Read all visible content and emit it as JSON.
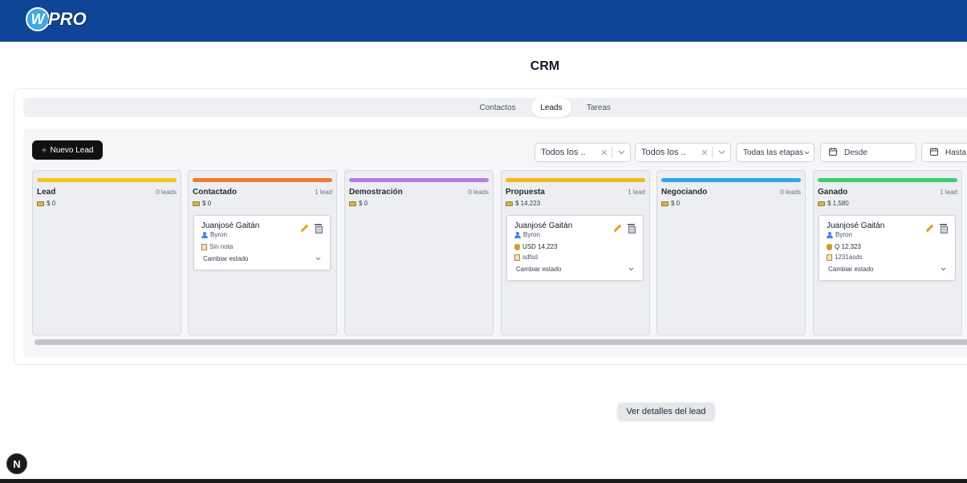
{
  "header": {
    "logo_letter": "W",
    "logo_text": "PRO"
  },
  "page": {
    "title": "CRM"
  },
  "tabs": [
    {
      "label": "Contactos",
      "active": false
    },
    {
      "label": "Leads",
      "active": true
    },
    {
      "label": "Tareas",
      "active": false
    }
  ],
  "toolbar": {
    "new_lead_label": "Nuevo Lead",
    "filter1_value": "Todos los ..",
    "filter2_value": "Todos los ..",
    "stage_filter_value": "Todas las etapas",
    "date_from_placeholder": "Desde",
    "date_to_placeholder": "Hasta"
  },
  "columns": [
    {
      "name": "Lead",
      "count": "0 leads",
      "total": "$ 0",
      "color": "#f5c518",
      "leads": []
    },
    {
      "name": "Contactado",
      "count": "1 lead",
      "total": "$ 0",
      "color": "#f07a2a",
      "leads": [
        {
          "name": "Juanjosé Gaitán",
          "owner": "Byron",
          "amount": "",
          "note": "Sin nota",
          "state": "Cambiar estado"
        }
      ]
    },
    {
      "name": "Demostración",
      "count": "0 leads",
      "total": "$ 0",
      "color": "#b57be8",
      "leads": []
    },
    {
      "name": "Propuesta",
      "count": "1 lead",
      "total": "$ 14,223",
      "color": "#f5b81f",
      "leads": [
        {
          "name": "Juanjosé Gaitán",
          "owner": "Byron",
          "amount": "USD 14,223",
          "note": "sdfsd",
          "state": "Cambiar estado"
        }
      ]
    },
    {
      "name": "Negociando",
      "count": "0 leads",
      "total": "$ 0",
      "color": "#2ea8ec",
      "leads": []
    },
    {
      "name": "Ganado",
      "count": "1 lead",
      "total": "$ 1,580",
      "color": "#3ccf6e",
      "leads": [
        {
          "name": "Juanjosé Gaitán",
          "owner": "Byron",
          "amount": "Q 12,323",
          "note": "1231asds",
          "state": "Cambiar estado"
        }
      ]
    }
  ],
  "tooltip": "Ver detalles del lead",
  "dev_badge": "N"
}
